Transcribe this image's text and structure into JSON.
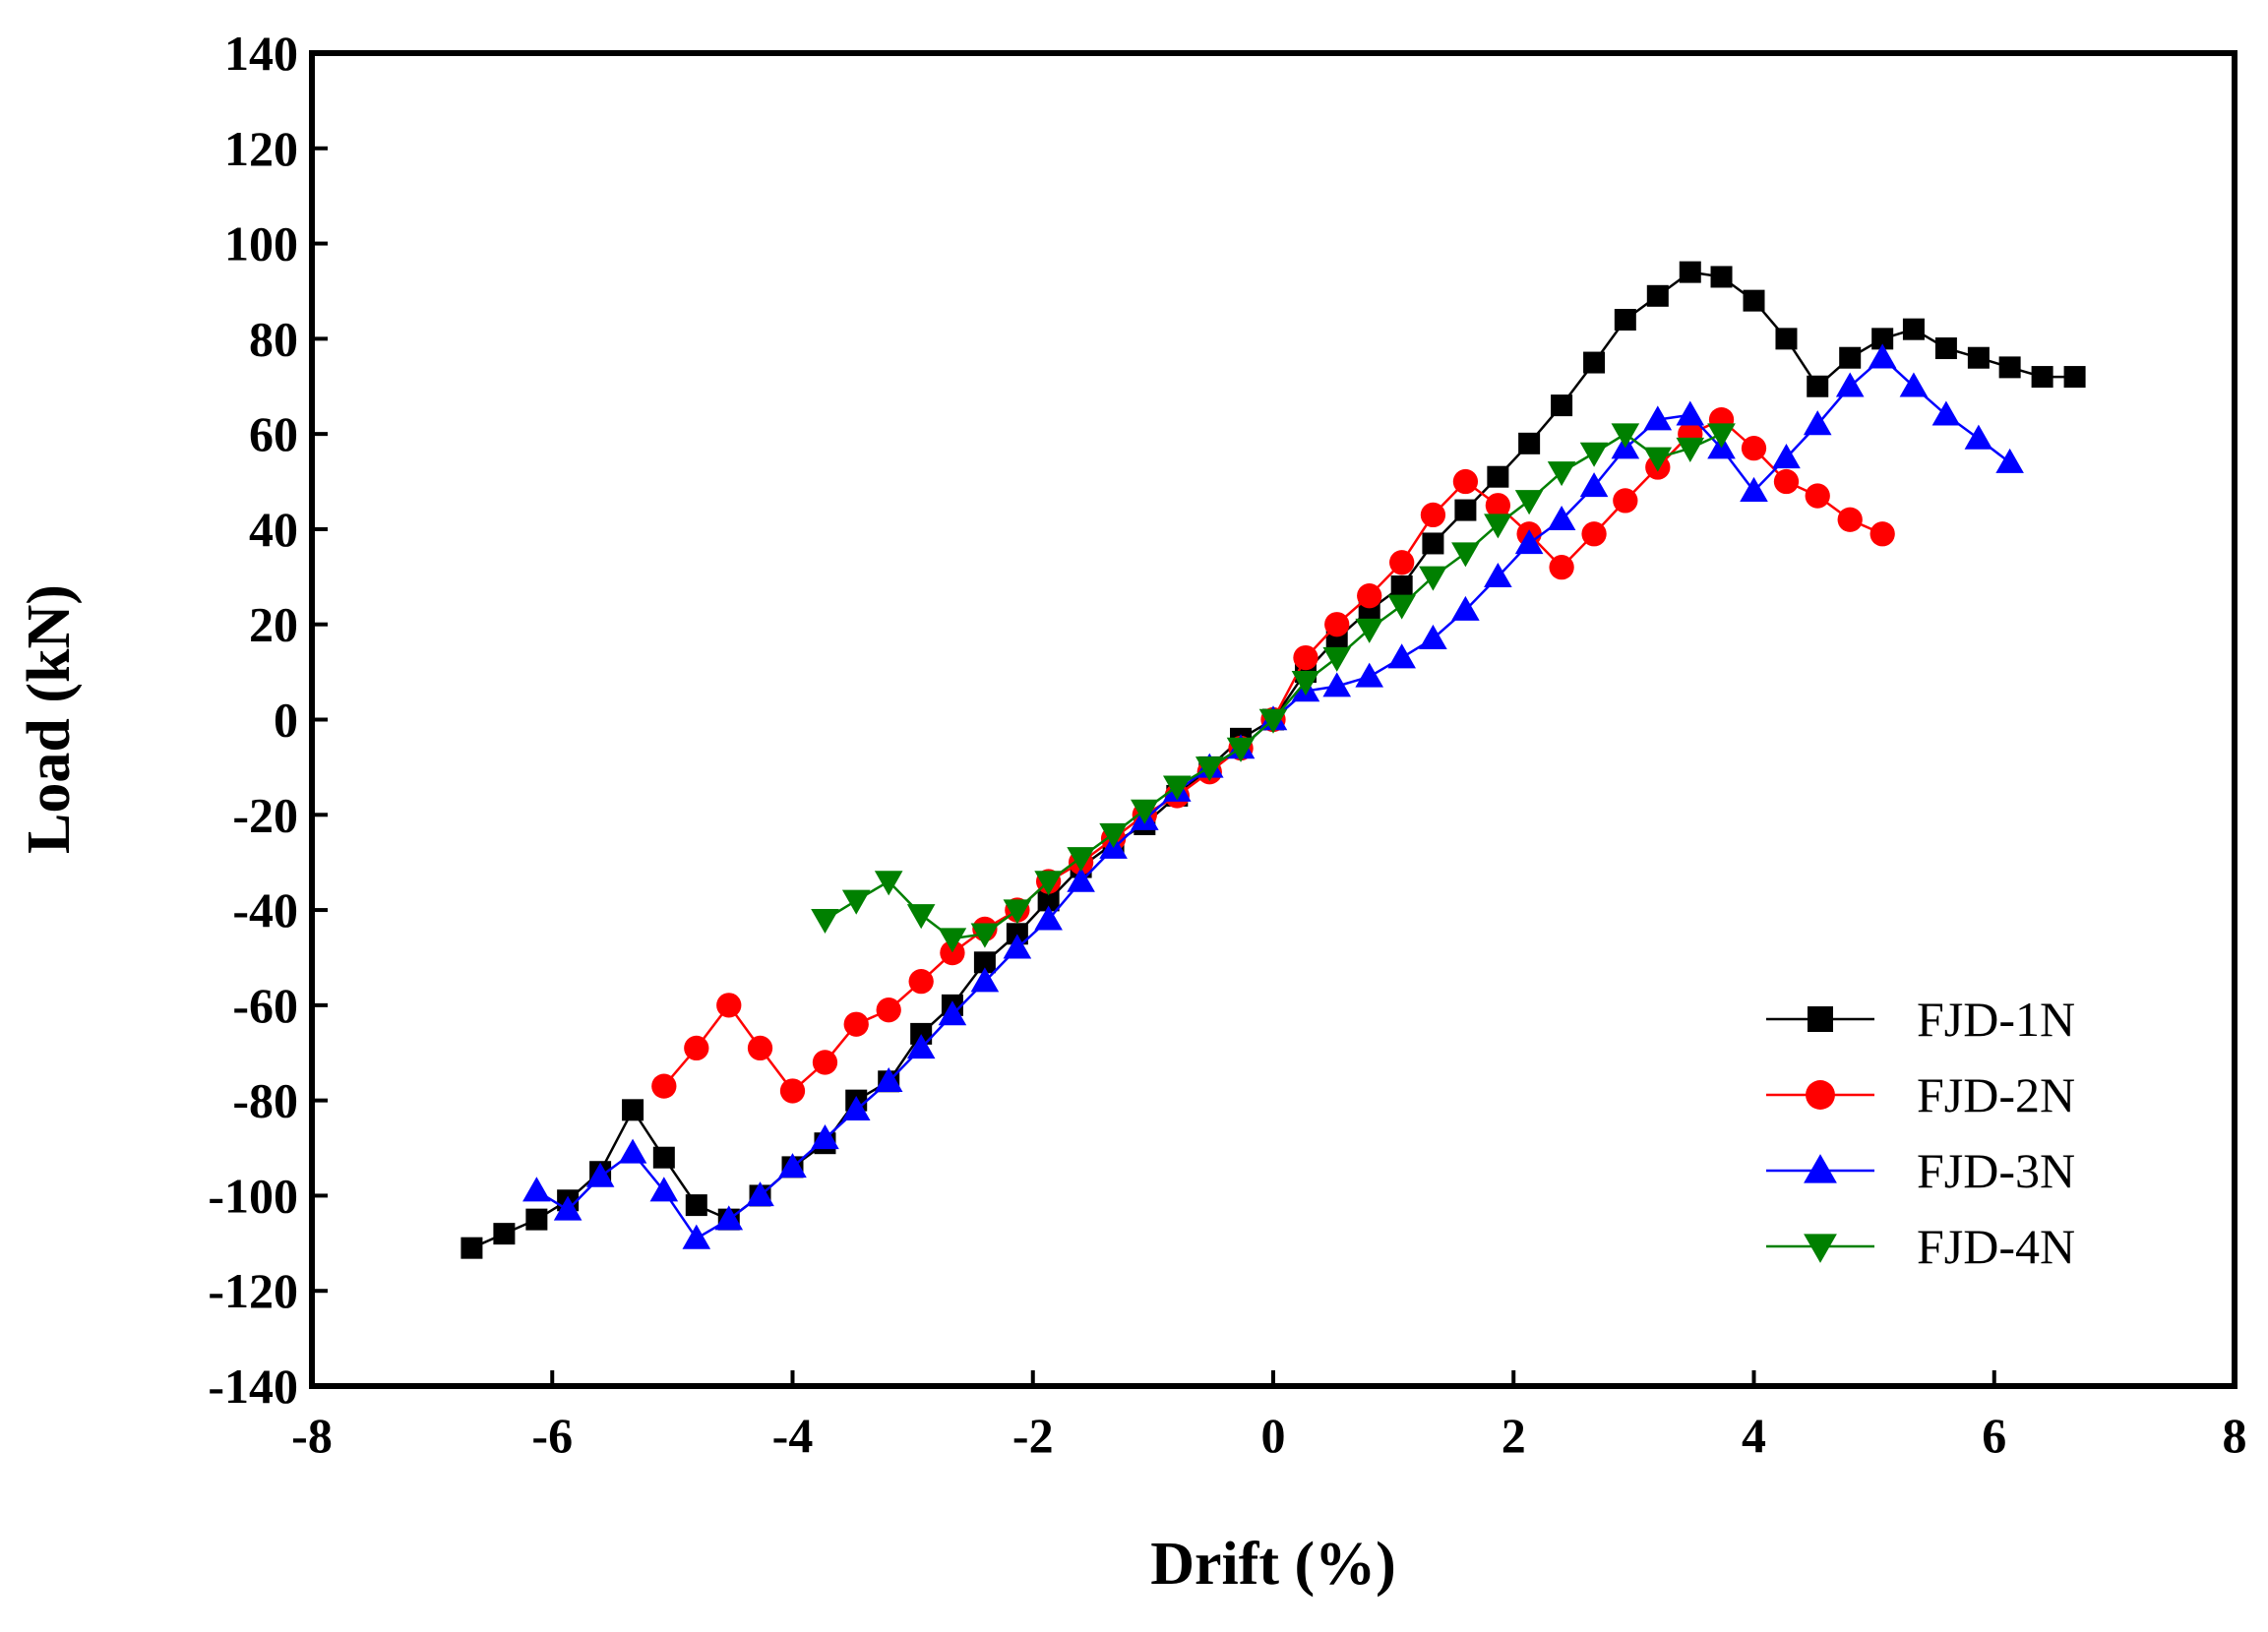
{
  "chart_data": {
    "type": "line",
    "title": "",
    "xlabel": "Drift (%)",
    "ylabel": "Load (kN)",
    "xlim": [
      -8,
      8
    ],
    "ylim": [
      -140,
      140
    ],
    "xticks": [
      -8,
      -6,
      -4,
      -2,
      0,
      2,
      4,
      6,
      8
    ],
    "yticks": [
      -140,
      -120,
      -100,
      -80,
      -60,
      -40,
      -20,
      0,
      20,
      40,
      60,
      80,
      100,
      120,
      140
    ],
    "legend_position": "bottom-right",
    "series": [
      {
        "name": "FJD-1N",
        "color": "#000000",
        "marker": "square",
        "x": [
          -6.67,
          -6.4,
          -6.13,
          -5.87,
          -5.6,
          -5.33,
          -5.07,
          -4.8,
          -4.53,
          -4.27,
          -4.0,
          -3.73,
          -3.47,
          -3.2,
          -2.93,
          -2.67,
          -2.4,
          -2.13,
          -1.87,
          -1.6,
          -1.33,
          -1.07,
          -0.8,
          -0.53,
          -0.27,
          0.0,
          0.27,
          0.53,
          0.8,
          1.07,
          1.33,
          1.6,
          1.87,
          2.13,
          2.4,
          2.67,
          2.93,
          3.2,
          3.47,
          3.73,
          4.0,
          4.27,
          4.53,
          4.8,
          5.07,
          5.33,
          5.6,
          5.87,
          6.13,
          6.4,
          6.67
        ],
        "y": [
          -111,
          -108,
          -105,
          -101,
          -95,
          -82,
          -92,
          -102,
          -105,
          -100,
          -94,
          -89,
          -80,
          -76,
          -66,
          -60,
          -51,
          -45,
          -38,
          -31,
          -26,
          -22,
          -16,
          -10,
          -4,
          0,
          10,
          17,
          23,
          28,
          37,
          44,
          51,
          58,
          66,
          75,
          84,
          89,
          94,
          93,
          88,
          80,
          70,
          76,
          80,
          82,
          78,
          76,
          74,
          72,
          72
        ]
      },
      {
        "name": "FJD-2N",
        "color": "#ff0000",
        "marker": "circle",
        "x": [
          -5.07,
          -4.8,
          -4.53,
          -4.27,
          -4.0,
          -3.73,
          -3.47,
          -3.2,
          -2.93,
          -2.67,
          -2.4,
          -2.13,
          -1.87,
          -1.6,
          -1.33,
          -1.07,
          -0.8,
          -0.53,
          -0.27,
          0.0,
          0.27,
          0.53,
          0.8,
          1.07,
          1.33,
          1.6,
          1.87,
          2.13,
          2.4,
          2.67,
          2.93,
          3.2,
          3.47,
          3.73,
          4.0,
          4.27,
          4.53,
          4.8,
          5.07
        ],
        "y": [
          -77,
          -69,
          -60,
          -69,
          -78,
          -72,
          -64,
          -61,
          -55,
          -49,
          -44,
          -40,
          -34,
          -30,
          -25,
          -20,
          -16,
          -11,
          -6,
          0,
          13,
          20,
          26,
          33,
          43,
          50,
          45,
          39,
          32,
          39,
          46,
          53,
          60,
          63,
          57,
          50,
          47,
          42,
          39
        ]
      },
      {
        "name": "FJD-3N",
        "color": "#0000ff",
        "marker": "triangle-up",
        "x": [
          -6.13,
          -5.87,
          -5.6,
          -5.33,
          -5.07,
          -4.8,
          -4.53,
          -4.27,
          -4.0,
          -3.73,
          -3.47,
          -3.2,
          -2.93,
          -2.67,
          -2.4,
          -2.13,
          -1.87,
          -1.6,
          -1.33,
          -1.07,
          -0.8,
          -0.53,
          -0.27,
          0.0,
          0.27,
          0.53,
          0.8,
          1.07,
          1.33,
          1.6,
          1.87,
          2.13,
          2.4,
          2.67,
          2.93,
          3.2,
          3.47,
          3.73,
          4.0,
          4.27,
          4.53,
          4.8,
          5.07,
          5.33,
          5.6,
          5.87,
          6.13
        ],
        "y": [
          -99,
          -103,
          -96,
          -91,
          -99,
          -109,
          -105,
          -100,
          -94,
          -88,
          -82,
          -76,
          -69,
          -62,
          -55,
          -48,
          -42,
          -34,
          -27,
          -21,
          -15,
          -10,
          -6,
          0,
          6,
          7,
          9,
          13,
          17,
          23,
          30,
          37,
          42,
          49,
          57,
          63,
          64,
          57,
          48,
          55,
          62,
          70,
          76,
          70,
          64,
          59,
          54
        ]
      },
      {
        "name": "FJD-4N",
        "color": "#008000",
        "marker": "triangle-down",
        "x": [
          -3.73,
          -3.47,
          -3.2,
          -2.93,
          -2.67,
          -2.4,
          -2.13,
          -1.87,
          -1.6,
          -1.33,
          -1.07,
          -0.8,
          -0.53,
          -0.27,
          0.0,
          0.27,
          0.53,
          0.8,
          1.07,
          1.33,
          1.6,
          1.87,
          2.13,
          2.4,
          2.67,
          2.93,
          3.2,
          3.47,
          3.73
        ],
        "y": [
          -42,
          -38,
          -34,
          -41,
          -46,
          -45,
          -40,
          -34,
          -29,
          -24,
          -19,
          -14,
          -10,
          -6,
          0,
          8,
          13,
          19,
          24,
          30,
          35,
          41,
          46,
          52,
          56,
          60,
          55,
          57,
          60
        ]
      }
    ]
  }
}
